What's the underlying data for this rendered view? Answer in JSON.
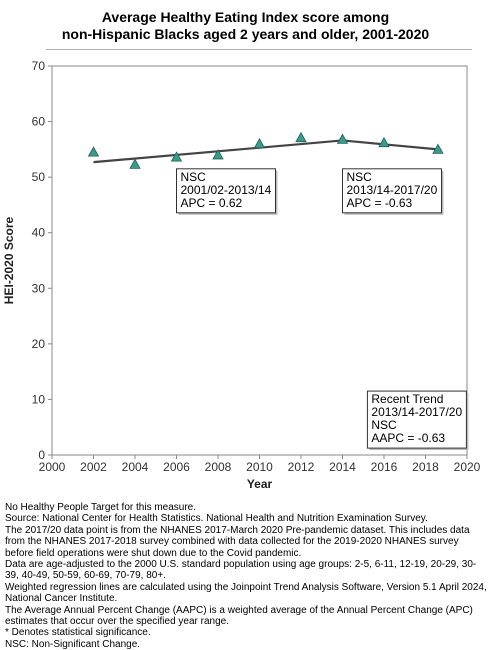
{
  "chart_data": {
    "type": "scatter",
    "title_lines": [
      "Average Healthy Eating Index score among",
      "non-Hispanic Blacks aged 2 years and older, 2001-2020"
    ],
    "xlabel": "Year",
    "ylabel": "HEI-2020 Score",
    "xlim": [
      2000,
      2020
    ],
    "ylim": [
      0,
      70
    ],
    "x_ticks": [
      2000,
      2002,
      2004,
      2006,
      2008,
      2010,
      2012,
      2014,
      2016,
      2018,
      2020
    ],
    "y_ticks": [
      0,
      10,
      20,
      30,
      40,
      50,
      60,
      70
    ],
    "grid": false,
    "series": [
      {
        "marker": "triangle",
        "color": "#3a9b8c",
        "x": [
          2002,
          2004,
          2006,
          2008,
          2010,
          2012,
          2014,
          2016,
          2018.6
        ],
        "y": [
          54.5,
          52.3,
          53.6,
          54.0,
          56.0,
          57.1,
          56.8,
          56.2,
          55.0
        ]
      },
      {
        "type": "line",
        "color": "#444444",
        "x": [
          2002,
          2014,
          2018.6
        ],
        "y": [
          52.7,
          56.6,
          55.0
        ]
      }
    ],
    "annotations": [
      {
        "lines": [
          "NSC",
          "2001/02-2013/14",
          "APC =  0.62"
        ],
        "x": 2006,
        "y": 51.5
      },
      {
        "lines": [
          "NSC",
          "2013/14-2017/20",
          "APC = -0.63"
        ],
        "x": 2014,
        "y": 51.5
      },
      {
        "lines": [
          "Recent Trend",
          "2013/14-2017/20",
          "NSC",
          "AAPC = -0.63"
        ],
        "x": 2015.2,
        "y": 11.5
      }
    ]
  },
  "footnotes": [
    "No Healthy People Target for this measure.",
    "Source: National Center for Health Statistics. National Health and Nutrition Examination Survey.",
    "The 2017/20 data point is from the NHANES 2017-March 2020 Pre-pandemic dataset. This includes data from the NHANES 2017-2018 survey combined with data collected for the 2019-2020 NHANES survey before field operations were shut down due to the Covid pandemic.",
    "Data are age-adjusted to the 2000 U.S. standard population using age groups: 2-5, 6-11, 12-19, 20-29, 30-39, 40-49, 50-59, 60-69, 70-79, 80+.",
    "Weighted regression lines are calculated using the Joinpoint Trend Analysis Software, Version 5.1 April 2024, National Cancer Institute.",
    "The Average Annual Percent Change (AAPC) is a weighted average of the Annual Percent Change (APC) estimates that occur over the specified year range.",
    "* Denotes statistical significance.",
    "NSC: Non-Significant Change."
  ]
}
